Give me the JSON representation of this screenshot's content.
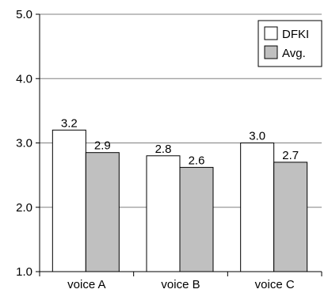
{
  "chart_data": {
    "type": "bar",
    "categories": [
      "voice A",
      "voice B",
      "voice C"
    ],
    "series": [
      {
        "name": "DFKI",
        "values": [
          3.2,
          2.8,
          3.0
        ],
        "labels": [
          "3.2",
          "2.8",
          "3.0"
        ],
        "color": "#ffffff"
      },
      {
        "name": "Avg.",
        "values": [
          2.85,
          2.62,
          2.7
        ],
        "labels": [
          "2.9",
          "2.6",
          "2.7"
        ],
        "color": "#c0c0c0"
      }
    ],
    "ylim": [
      1.0,
      5.0
    ],
    "yticks": [
      1.0,
      2.0,
      3.0,
      4.0,
      5.0
    ],
    "ytick_labels": [
      "1.0",
      "2.0",
      "3.0",
      "4.0",
      "5.0"
    ],
    "grid": true,
    "legend_position": "top-right",
    "colors": {
      "axis": "#000000",
      "grid": "#808080",
      "bar_edge": "#000000"
    }
  }
}
